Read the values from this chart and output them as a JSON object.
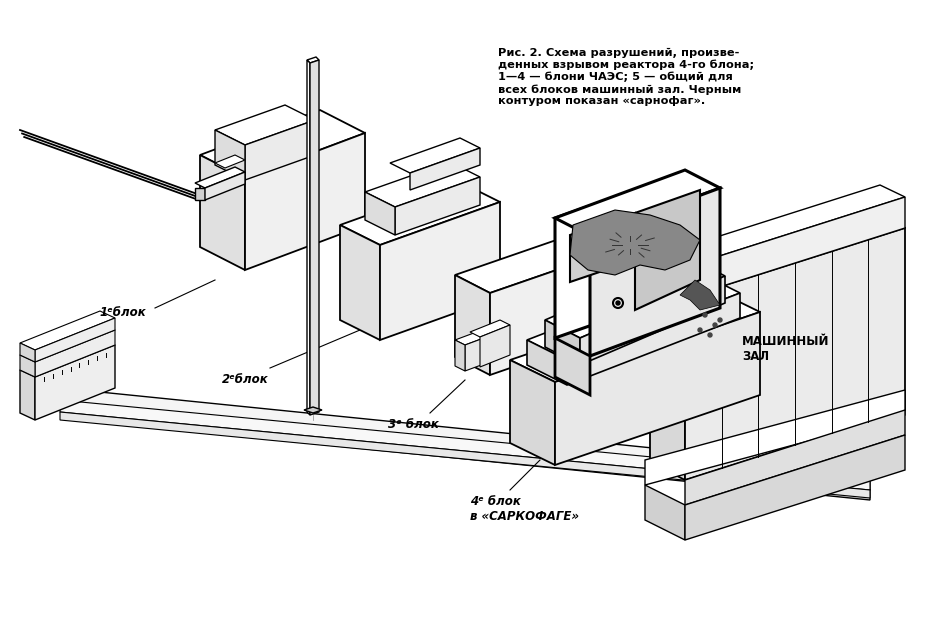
{
  "background_color": "#ffffff",
  "line_color": "#000000",
  "caption_text": "Рис. 2. Схема разрушений, произве-\nденных взрывом реактора 4-го блона;\n1—4 — блони ЧАЭС; 5 — общий для\nвсех блоков машинный зал. Черным\nконтуром показан «сарнофаг».",
  "label_1": "1ᵉблок",
  "label_2": "2ᵉблок",
  "label_3": "3ᵉ блок",
  "label_4": "4ᵉ блок\nв «САРКОФАГЕ»",
  "label_5": "МАШИННЫЙ\nЗАЛ"
}
